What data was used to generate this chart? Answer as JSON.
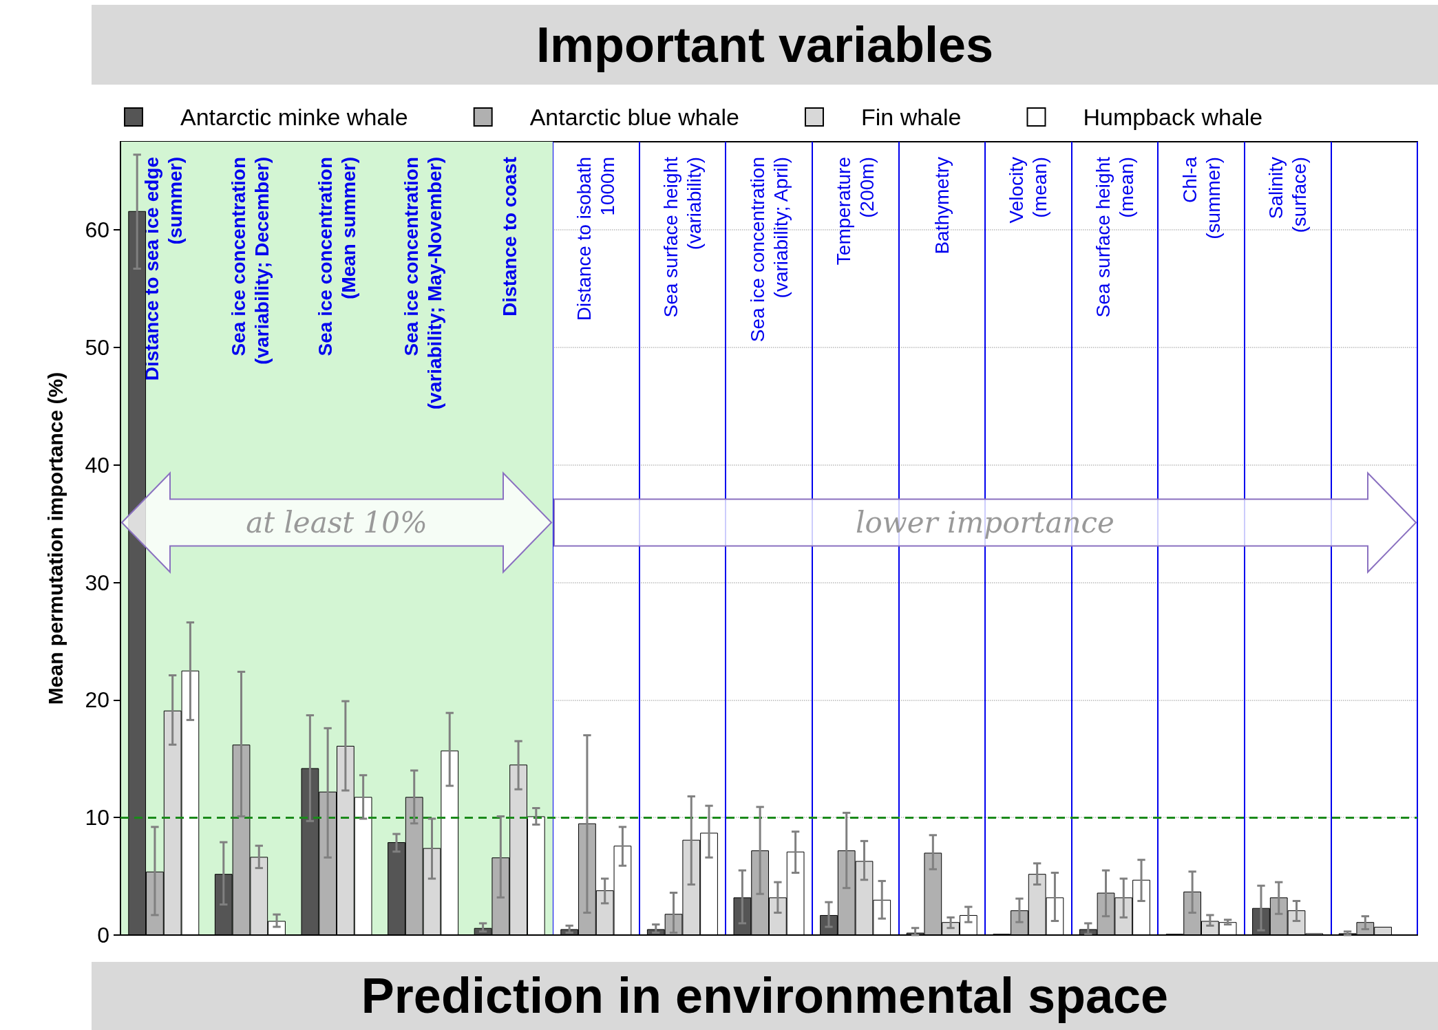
{
  "chart_data": {
    "type": "bar",
    "title": "Important variables",
    "ylabel": "Mean permutation importance (%)",
    "categories": [
      "Distance to sea ice edge\n(summer)",
      "Sea ice concentration\n(variability; December)",
      "Sea ice concentration\n(Mean summer)",
      "Sea ice concentration\n(variability; May-November)",
      "Distance to coast",
      "Distance to isobath\n1000m",
      "Sea surface height\n(variability)",
      "Sea ice concentration\n(variability; April)",
      "Temperature\n(200m)",
      "Bathymetry",
      "Velocity\n(mean)",
      "Sea surface height\n(mean)",
      "Chl-a\n(summer)",
      "Salinity\n(surface)",
      null
    ],
    "series": [
      {
        "name": "Antarctic minke whale",
        "color": "#555555",
        "values": [
          61.6,
          5.2,
          14.2,
          7.9,
          0.6,
          0.5,
          0.5,
          3.2,
          1.7,
          0.2,
          0.1,
          0.5,
          0.1,
          2.3,
          0.15
        ],
        "errors": [
          [
            56.7,
            66.4
          ],
          [
            2.6,
            7.9
          ],
          [
            9.7,
            18.7
          ],
          [
            7.1,
            8.6
          ],
          [
            0.3,
            1.0
          ],
          [
            0.2,
            0.8
          ],
          [
            0.2,
            0.9
          ],
          [
            1.0,
            5.5
          ],
          [
            0.7,
            2.8
          ],
          [
            0.0,
            0.6
          ],
          null,
          [
            0.1,
            1.0
          ],
          null,
          [
            0.4,
            4.2
          ],
          [
            0.0,
            0.3
          ]
        ]
      },
      {
        "name": "Antarctic blue whale",
        "color": "#b0b0b0",
        "values": [
          5.4,
          16.2,
          12.2,
          11.75,
          6.6,
          9.5,
          1.8,
          7.2,
          7.2,
          7.0,
          2.1,
          3.6,
          3.7,
          3.2,
          1.1
        ],
        "errors": [
          [
            1.7,
            9.2
          ],
          [
            10.1,
            22.4
          ],
          [
            6.6,
            17.6
          ],
          [
            9.5,
            14.0
          ],
          [
            3.2,
            10.1
          ],
          [
            1.9,
            17.0
          ],
          [
            0.2,
            3.6
          ],
          [
            3.5,
            10.9
          ],
          [
            4.0,
            10.4
          ],
          [
            5.6,
            8.5
          ],
          [
            1.1,
            3.1
          ],
          [
            1.6,
            5.5
          ],
          [
            1.9,
            5.4
          ],
          [
            1.8,
            4.5
          ],
          [
            0.5,
            1.6
          ]
        ]
      },
      {
        "name": "Fin whale",
        "color": "#d8d8d8",
        "values": [
          19.1,
          6.65,
          16.1,
          7.4,
          14.5,
          3.8,
          8.1,
          3.2,
          6.3,
          1.1,
          5.2,
          3.2,
          1.2,
          2.1,
          0.7
        ],
        "errors": [
          [
            16.2,
            22.1
          ],
          [
            5.7,
            7.6
          ],
          [
            12.3,
            19.9
          ],
          [
            4.8,
            9.9
          ],
          [
            12.4,
            16.5
          ],
          [
            2.7,
            4.8
          ],
          [
            4.3,
            11.8
          ],
          [
            1.9,
            4.5
          ],
          [
            4.7,
            8.0
          ],
          [
            0.6,
            1.5
          ],
          [
            4.3,
            6.1
          ],
          [
            1.5,
            4.8
          ],
          [
            0.8,
            1.7
          ],
          [
            1.2,
            2.9
          ],
          null
        ]
      },
      {
        "name": "Humpback whale",
        "color": "#ffffff",
        "values": [
          22.5,
          1.2,
          11.75,
          15.7,
          10.1,
          7.6,
          8.7,
          7.1,
          3.0,
          1.7,
          3.2,
          4.7,
          1.1,
          0.15,
          null
        ],
        "errors": [
          [
            18.3,
            26.6
          ],
          [
            0.7,
            1.75
          ],
          [
            9.9,
            13.6
          ],
          [
            12.7,
            18.9
          ],
          [
            9.4,
            10.8
          ],
          [
            5.9,
            9.2
          ],
          [
            6.6,
            11.0
          ],
          [
            5.3,
            8.8
          ],
          [
            1.4,
            4.6
          ],
          [
            1.1,
            2.4
          ],
          [
            1.2,
            5.3
          ],
          [
            2.9,
            6.4
          ],
          [
            0.9,
            1.3
          ],
          null,
          null
        ]
      }
    ],
    "ylim": [
      0,
      67.5
    ],
    "yticks": [
      0,
      10,
      20,
      30,
      40,
      50,
      60
    ],
    "grid": true,
    "legend": "top",
    "ref_lines": [
      {
        "axis": "y",
        "value": 10,
        "color": "#1a8a1a",
        "line_style": "dashed"
      }
    ],
    "bands": [
      {
        "axis": "x",
        "from": "Distance to sea ice edge\n(summer)",
        "to": "Distance to coast",
        "color": "#d3f5d3"
      }
    ],
    "annotations": [
      "at least 10%",
      "lower importance",
      "Prediction in environmental space"
    ]
  }
}
